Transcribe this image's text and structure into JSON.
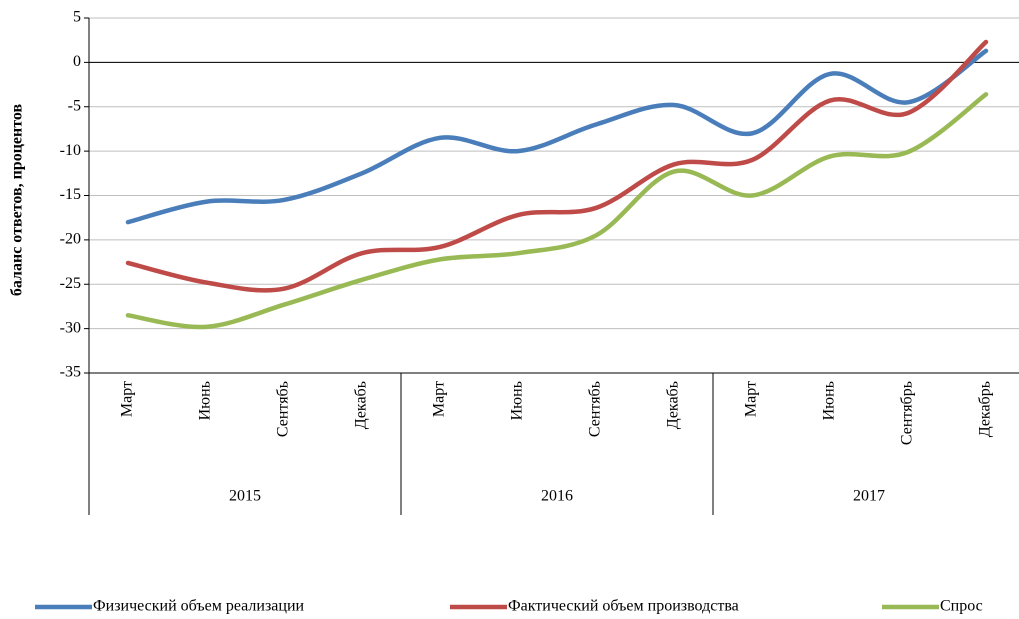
{
  "chart_data": {
    "type": "line",
    "y_label": "баланс ответов, процентов",
    "categories": [
      "Март",
      "Июнь",
      "Сентябь",
      "Декабь",
      "Март",
      "Июнь",
      "Сентябь",
      "Декабь",
      "Март",
      "Июнь",
      "Сентябрь",
      "Декабрь"
    ],
    "groups": [
      "2015",
      "2016",
      "2017"
    ],
    "series": [
      {
        "name": "Физический объем реализации",
        "color": "#4a7ebb",
        "values": [
          -18,
          -15.7,
          -15.5,
          -12.5,
          -8.5,
          -10,
          -7,
          -4.8,
          -8,
          -1.3,
          -4.5,
          1.3
        ]
      },
      {
        "name": "Фактический объем производства",
        "color": "#be4b48",
        "values": [
          -22.6,
          -24.8,
          -25.5,
          -21.5,
          -20.8,
          -17.2,
          -16.4,
          -11.5,
          -11,
          -4.3,
          -5.7,
          2.3
        ]
      },
      {
        "name": "Спрос",
        "color": "#98b954",
        "values": [
          -28.5,
          -29.8,
          -27.3,
          -24.5,
          -22.2,
          -21.5,
          -19.5,
          -12.3,
          -15,
          -10.6,
          -10.1,
          -3.6
        ]
      }
    ],
    "ylim": [
      -35,
      5
    ],
    "yticks": [
      -35,
      -30,
      -25,
      -20,
      -15,
      -10,
      -5,
      0,
      5
    ],
    "grid": true,
    "smooth": true,
    "legend": "bottom"
  }
}
